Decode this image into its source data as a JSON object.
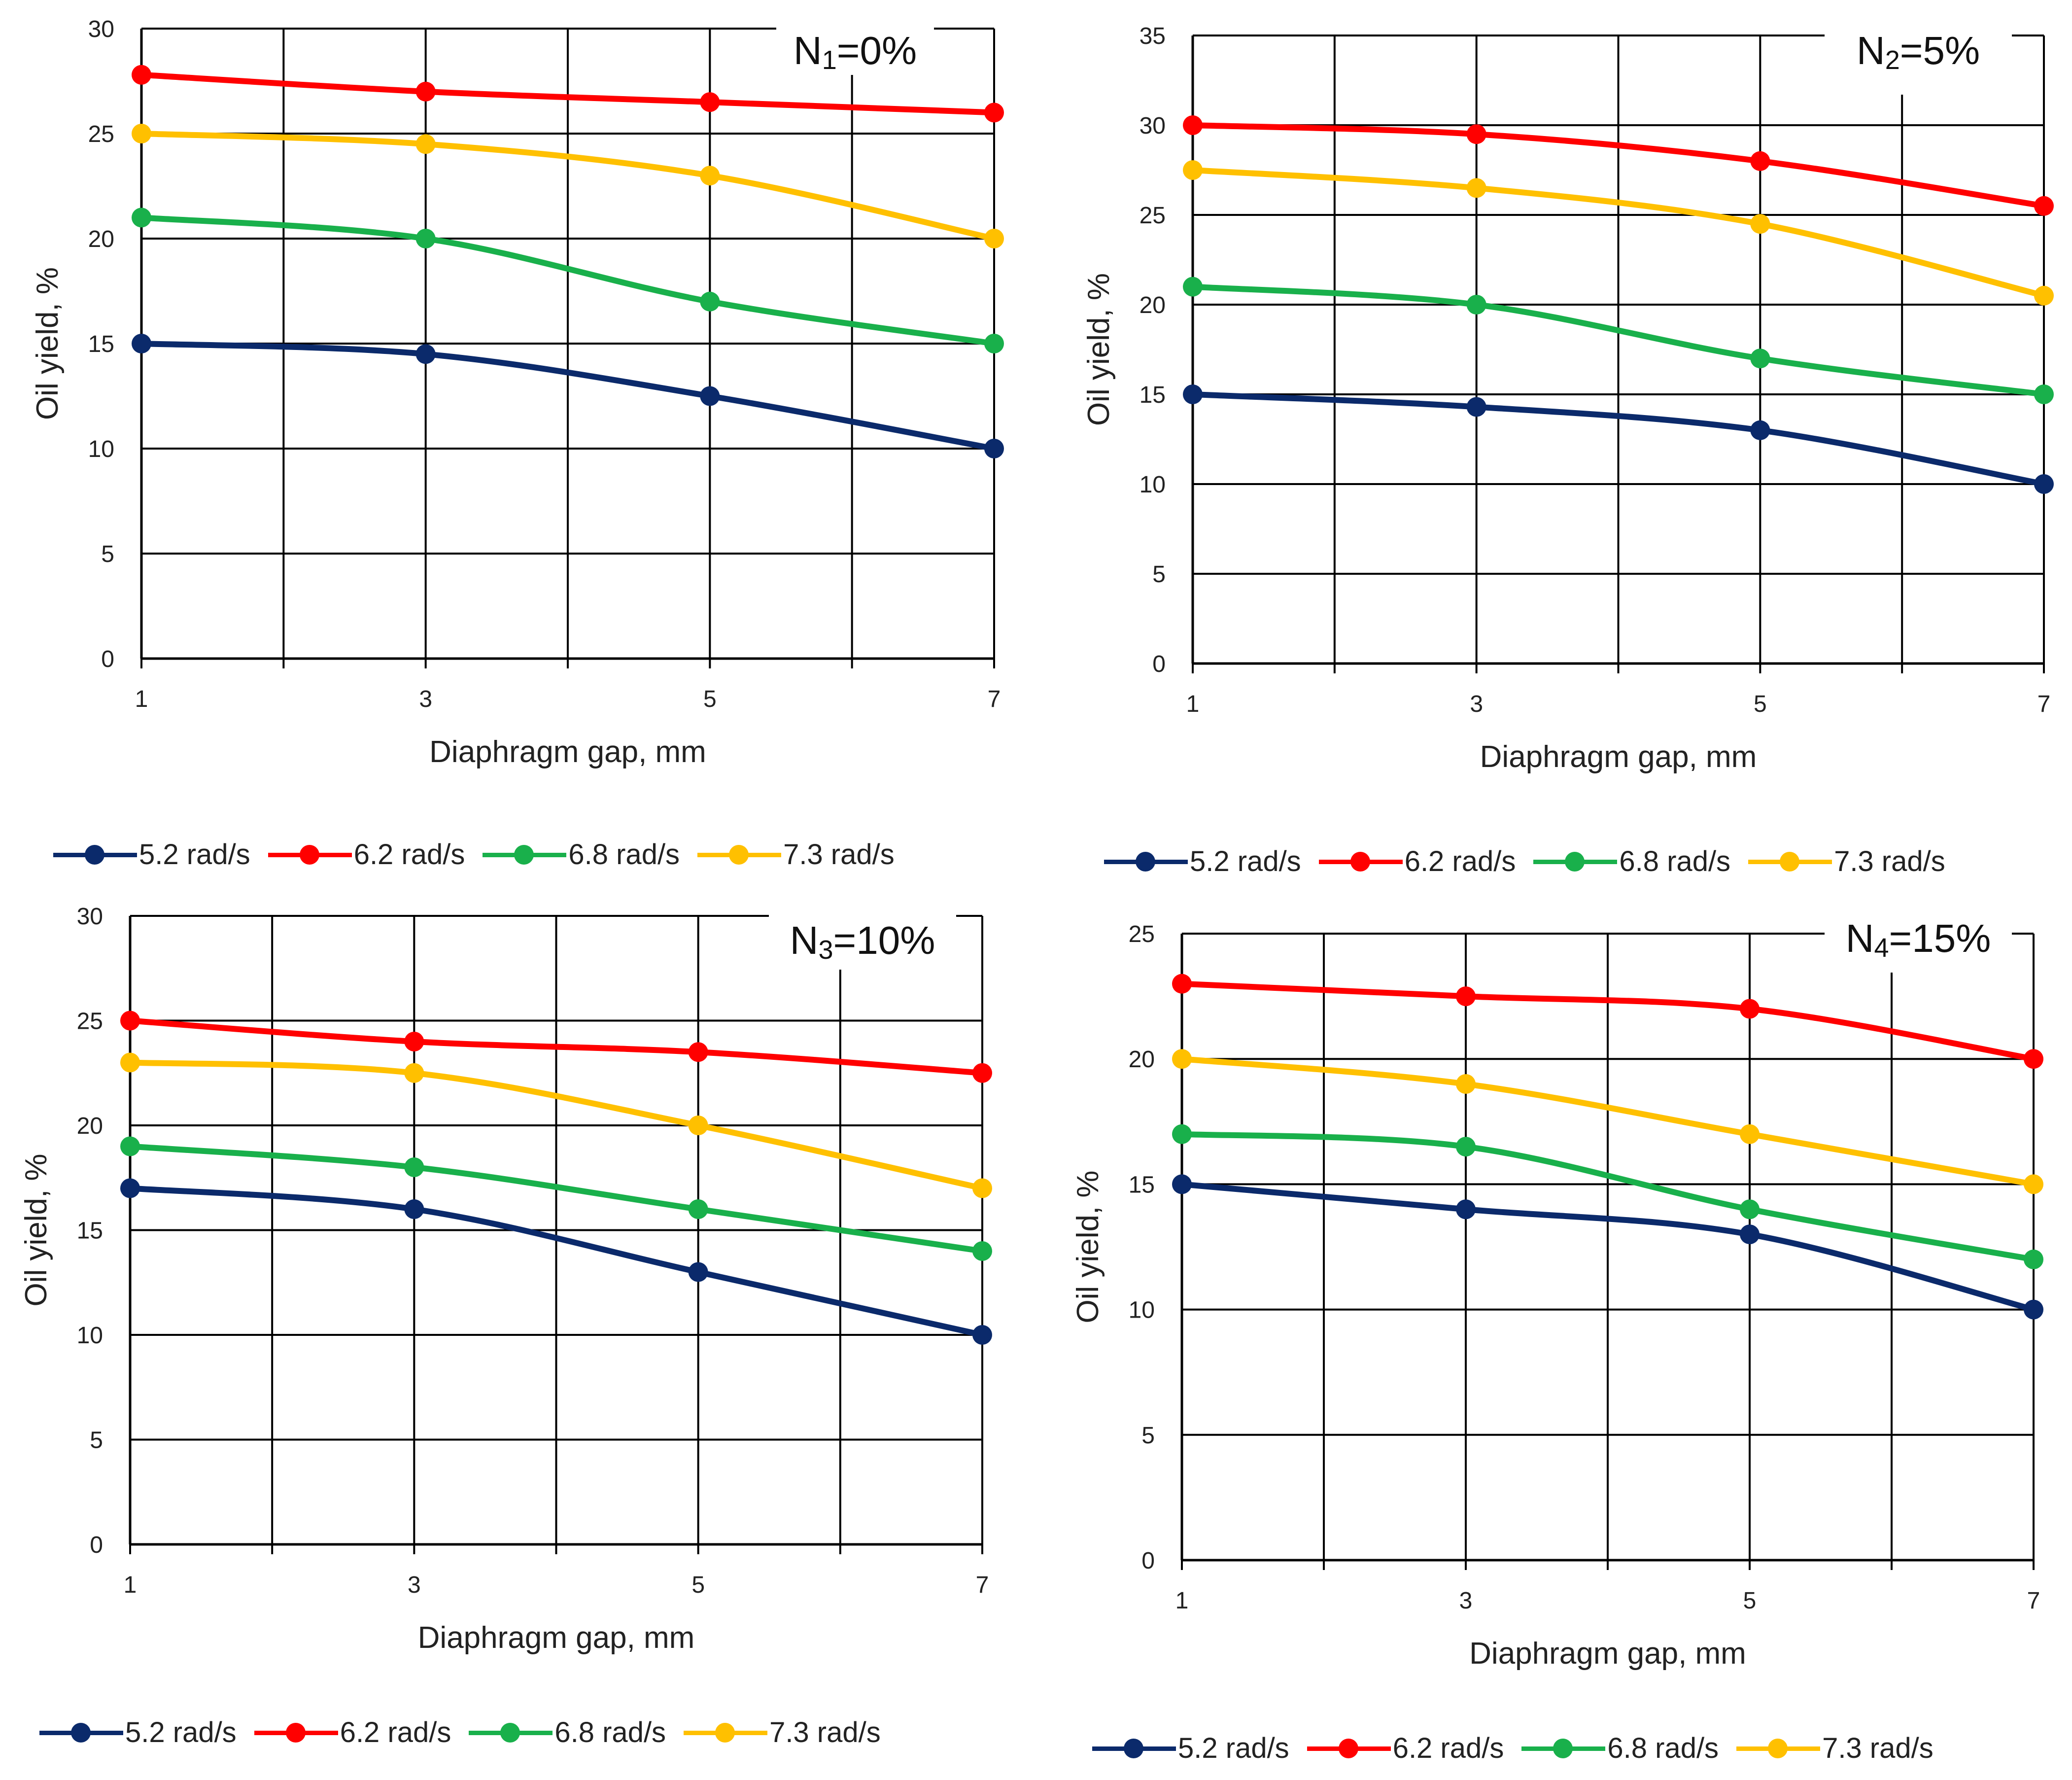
{
  "colors": {
    "5.2 rad/s": "#0b2a6b",
    "6.2 rad/s": "#ff0000",
    "6.8 rad/s": "#19b04b",
    "7.3 rad/s": "#ffc000"
  },
  "chart_data": [
    {
      "type": "line",
      "title": "N1=0%",
      "title_main": "N",
      "title_sub": "1",
      "title_rest": "=0%",
      "xlabel": "Diaphragm gap, mm",
      "ylabel": "Oil yield, %",
      "x": [
        1,
        3,
        5,
        7
      ],
      "xlim": [
        1,
        7
      ],
      "ylim": [
        0,
        30
      ],
      "yticks": [
        0,
        5,
        10,
        15,
        20,
        25,
        30
      ],
      "xticks": [
        1,
        3,
        5,
        7
      ],
      "series": [
        {
          "name": "5.2 rad/s",
          "values": [
            15,
            14.5,
            12.5,
            10
          ]
        },
        {
          "name": "6.2 rad/s",
          "values": [
            27.8,
            27,
            26.5,
            26
          ]
        },
        {
          "name": "6.8 rad/s",
          "values": [
            21,
            20,
            17,
            15
          ]
        },
        {
          "name": "7.3 rad/s",
          "values": [
            25,
            24.5,
            23,
            20
          ]
        }
      ],
      "legend": [
        "5.2 rad/s",
        "6.2 rad/s",
        "6.8 rad/s",
        "7.3 rad/s"
      ]
    },
    {
      "type": "line",
      "title": "N2=5%",
      "title_main": "N",
      "title_sub": "2",
      "title_rest": "=5%",
      "xlabel": "Diaphragm gap, mm",
      "ylabel": "Oil yield, %",
      "x": [
        1,
        3,
        5,
        7
      ],
      "xlim": [
        1,
        7
      ],
      "ylim": [
        0,
        35
      ],
      "yticks": [
        0,
        5,
        10,
        15,
        20,
        25,
        30,
        35
      ],
      "xticks": [
        1,
        3,
        5,
        7
      ],
      "series": [
        {
          "name": "5.2 rad/s",
          "values": [
            15,
            14.3,
            13,
            10
          ]
        },
        {
          "name": "6.2 rad/s",
          "values": [
            30,
            29.5,
            28,
            25.5
          ]
        },
        {
          "name": "6.8 rad/s",
          "values": [
            21,
            20,
            17,
            15
          ]
        },
        {
          "name": "7.3 rad/s",
          "values": [
            27.5,
            26.5,
            24.5,
            20.5
          ]
        }
      ],
      "legend": [
        "5.2 rad/s",
        "6.2 rad/s",
        "6.8 rad/s",
        "7.3 rad/s"
      ]
    },
    {
      "type": "line",
      "title": "N3=10%",
      "title_main": "N",
      "title_sub": "3",
      "title_rest": "=10%",
      "xlabel": "Diaphragm gap, mm",
      "ylabel": "Oil yield, %",
      "x": [
        1,
        3,
        5,
        7
      ],
      "xlim": [
        1,
        7
      ],
      "ylim": [
        0,
        30
      ],
      "yticks": [
        0,
        5,
        10,
        15,
        20,
        25,
        30
      ],
      "xticks": [
        1,
        3,
        5,
        7
      ],
      "series": [
        {
          "name": "5.2 rad/s",
          "values": [
            17,
            16,
            13,
            10
          ]
        },
        {
          "name": "6.2 rad/s",
          "values": [
            25,
            24,
            23.5,
            22.5
          ]
        },
        {
          "name": "6.8 rad/s",
          "values": [
            19,
            18,
            16,
            14
          ]
        },
        {
          "name": "7.3 rad/s",
          "values": [
            23,
            22.5,
            20,
            17
          ]
        }
      ],
      "legend": [
        "5.2 rad/s",
        "6.2 rad/s",
        "6.8 rad/s",
        "7.3 rad/s"
      ]
    },
    {
      "type": "line",
      "title": "N4=15%",
      "title_main": "N",
      "title_sub": "4",
      "title_rest": "=15%",
      "xlabel": "Diaphragm gap, mm",
      "ylabel": "Oil yield, %",
      "x": [
        1,
        3,
        5,
        7
      ],
      "xlim": [
        1,
        7
      ],
      "ylim": [
        0,
        25
      ],
      "yticks": [
        0,
        5,
        10,
        15,
        20,
        25
      ],
      "xticks": [
        1,
        3,
        5,
        7
      ],
      "series": [
        {
          "name": "5.2 rad/s",
          "values": [
            15,
            14,
            13,
            10
          ]
        },
        {
          "name": "6.2 rad/s",
          "values": [
            23,
            22.5,
            22,
            20
          ]
        },
        {
          "name": "6.8 rad/s",
          "values": [
            17,
            16.5,
            14,
            12
          ]
        },
        {
          "name": "7.3 rad/s",
          "values": [
            20,
            19,
            17,
            15
          ]
        }
      ],
      "legend": [
        "5.2 rad/s",
        "6.2 rad/s",
        "6.8 rad/s",
        "7.3 rad/s"
      ]
    }
  ]
}
